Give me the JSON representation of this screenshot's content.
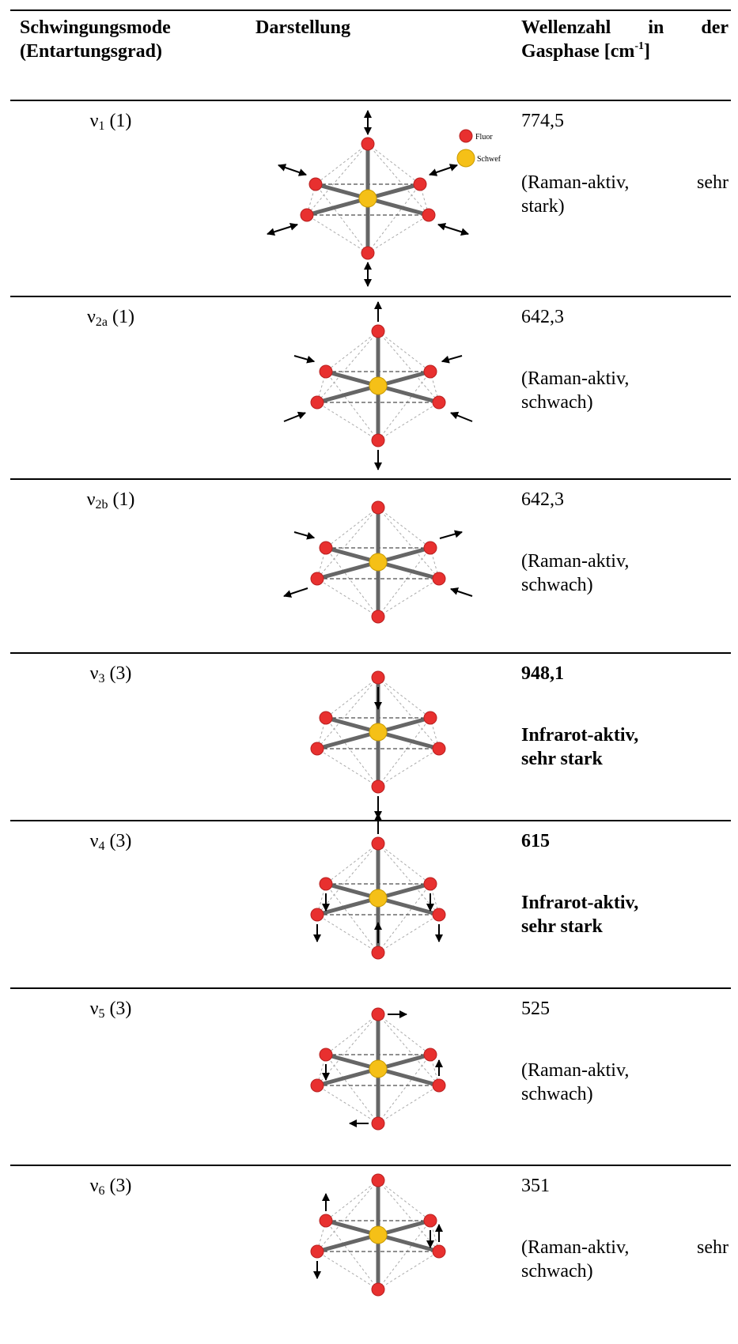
{
  "table": {
    "headers": [
      {
        "line1": "Schwingungsmode",
        "line2": "(Entartungsgrad)"
      },
      {
        "line1": "Darstellung"
      },
      {
        "line1": "Wellenzahl in der",
        "line2": "Gasphase [cm",
        "sup": "-1",
        "end": "]"
      }
    ],
    "legend": {
      "fluor": "Fluor",
      "schwefel": "Schwef"
    },
    "rows": [
      {
        "symbol": "ν",
        "sub": "1",
        "degeneracy": "(1)",
        "wavenumber": "774,5",
        "note": [
          "(Raman-aktiv, sehr",
          "stark)"
        ],
        "bold": false
      },
      {
        "symbol": "ν",
        "sub": "2a",
        "degeneracy": "(1)",
        "wavenumber": "642,3",
        "note": [
          "(Raman-aktiv,",
          "schwach)"
        ],
        "bold": false
      },
      {
        "symbol": "ν",
        "sub": "2b",
        "degeneracy": "(1)",
        "wavenumber": "642,3",
        "note": [
          "(Raman-aktiv,",
          "schwach)"
        ],
        "bold": false
      },
      {
        "symbol": "ν",
        "sub": "3",
        "degeneracy": "(3)",
        "wavenumber": "948,1",
        "note": [
          "Infrarot-aktiv,",
          "sehr stark"
        ],
        "bold": true
      },
      {
        "symbol": "ν",
        "sub": "4",
        "degeneracy": "(3)",
        "wavenumber": "615",
        "note": [
          "Infrarot-aktiv,",
          "sehr stark"
        ],
        "bold": true
      },
      {
        "symbol": "ν",
        "sub": "5",
        "degeneracy": "(3)",
        "wavenumber": "525",
        "note": [
          "(Raman-aktiv,",
          "schwach)"
        ],
        "bold": false
      },
      {
        "symbol": "ν",
        "sub": "6",
        "degeneracy": "(3)",
        "wavenumber": "351",
        "note": [
          "(Raman-aktiv, sehr",
          "schwach)"
        ],
        "bold": false
      }
    ]
  }
}
